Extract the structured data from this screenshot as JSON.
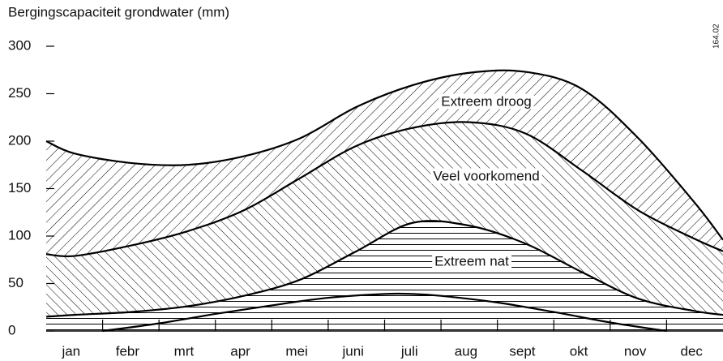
{
  "chart_data": {
    "type": "area",
    "title": "Bergingscapaciteit grondwater (mm)",
    "code": "164.02",
    "categories": [
      "jan",
      "febr",
      "mrt",
      "apr",
      "mei",
      "juni",
      "juli",
      "aug",
      "sept",
      "okt",
      "nov",
      "dec"
    ],
    "xlim": [
      0,
      12
    ],
    "ylim": [
      0,
      300
    ],
    "yticks": [
      0,
      50,
      100,
      150,
      200,
      250,
      300
    ],
    "series": [
      {
        "name": "Extreem droog",
        "pattern": "diagonal",
        "color": "#000000",
        "x": [
          0,
          0.5,
          1.5,
          2.5,
          3.5,
          4.5,
          5.5,
          6.5,
          7.5,
          8.5,
          9.5,
          10.5,
          11.5,
          12
        ],
        "values": [
          200,
          187,
          177,
          175,
          184,
          203,
          236,
          259,
          272,
          273,
          255,
          203,
          135,
          96
        ]
      },
      {
        "name": "Veel voorkomend",
        "pattern": "backdiagonal",
        "color": "#000000",
        "x": [
          0,
          0.5,
          1.5,
          2.5,
          3.5,
          4.5,
          5.5,
          6.5,
          7.5,
          8.5,
          9.5,
          10.5,
          11.5,
          12
        ],
        "values": [
          81,
          79,
          90,
          105,
          127,
          161,
          195,
          214,
          220,
          208,
          169,
          127,
          97,
          84
        ]
      },
      {
        "name": "Extreem nat",
        "pattern": "horizontal",
        "color": "#000000",
        "x": [
          0,
          0.5,
          1.5,
          2.5,
          3.5,
          4.5,
          5.5,
          6.5,
          7.5,
          8.5,
          9.5,
          10.5,
          11.5,
          12
        ],
        "values": [
          15,
          17,
          20,
          26,
          37,
          54,
          84,
          114,
          111,
          92,
          62,
          34,
          21,
          17
        ]
      },
      {
        "color": "#000000",
        "x": [
          1,
          2,
          3,
          4,
          5,
          6,
          6.5,
          7,
          8,
          9,
          10,
          11
        ],
        "values": [
          0,
          8,
          18,
          27,
          35,
          39,
          39,
          37,
          30,
          20,
          9,
          0
        ]
      }
    ]
  }
}
